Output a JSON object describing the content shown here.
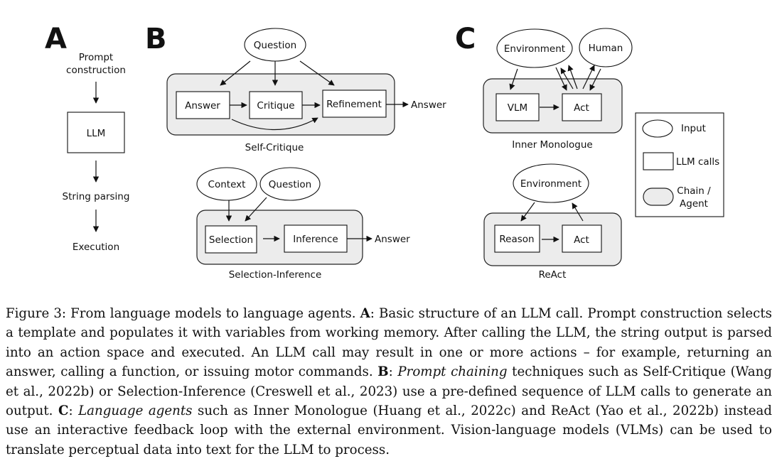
{
  "panels": {
    "a": {
      "letter": "A",
      "prompt_line1": "Prompt",
      "prompt_line2": "construction",
      "llm": "LLM",
      "parsing": "String parsing",
      "execution": "Execution"
    },
    "b": {
      "letter": "B",
      "question": "Question",
      "answer_box": "Answer",
      "critique": "Critique",
      "refinement": "Refinement",
      "answer_out": "Answer",
      "self_critique": "Self-Critique",
      "context": "Context",
      "question2": "Question",
      "selection": "Selection",
      "inference": "Inference",
      "answer_out2": "Answer",
      "selection_inference": "Selection-Inference"
    },
    "c": {
      "letter": "C",
      "environment": "Environment",
      "human": "Human",
      "vlm": "VLM",
      "act": "Act",
      "inner_monologue": "Inner Monologue",
      "environment2": "Environment",
      "reason": "Reason",
      "act2": "Act",
      "react": "ReAct"
    }
  },
  "legend": {
    "input": "Input",
    "llm_calls": "LLM calls",
    "chain_line1": "Chain /",
    "chain_line2": "Agent"
  },
  "caption": {
    "lead": "Figure 3: From language models to language agents. ",
    "a_label": "A",
    "a_text": ": Basic structure of an LLM call. Prompt construction selects a template and populates it with variables from working memory. After calling the LLM, the string output is parsed into an action space and executed. An LLM call may result in one or more actions – for example, returning an answer, calling a function, or issuing motor commands. ",
    "b_label": "B",
    "b_sep": ": ",
    "b_italic": "Prompt chaining",
    "b_text": " techniques such as Self-Critique (Wang et al., 2022b) or Selection-Inference (Creswell et al., 2023) use a pre-defined sequence of LLM calls to generate an output. ",
    "c_label": "C",
    "c_sep": ": ",
    "c_italic": "Language agents",
    "c_text": " such as Inner Monologue (Huang et al., 2022c) and ReAct (Yao et al., 2022b) instead use an interactive feedback loop with the external environment. Vision-language models (VLMs) can be used to translate perceptual data into text for the LLM to process."
  }
}
